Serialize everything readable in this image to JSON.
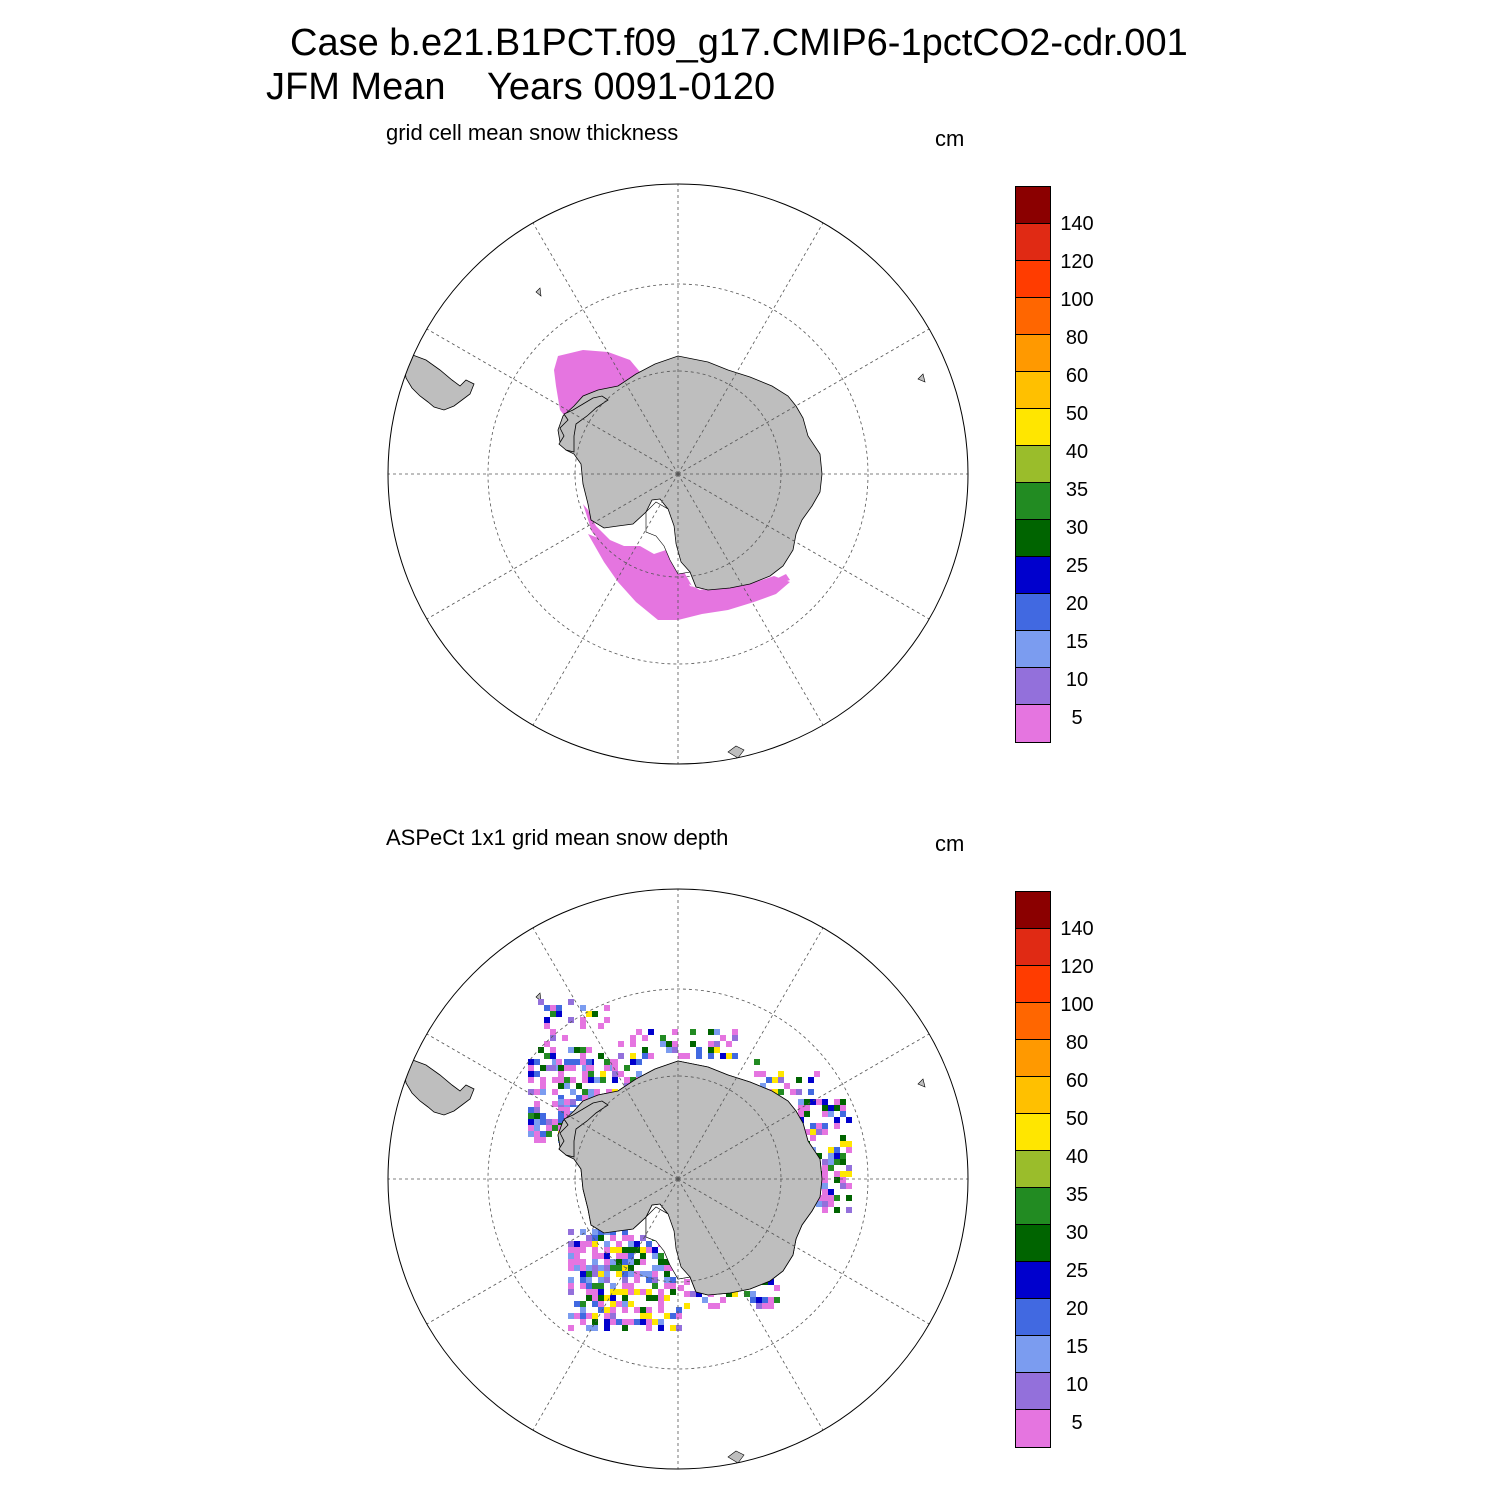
{
  "title": {
    "line1": "Case b.e21.B1PCT.f09_g17.CMIP6-1pctCO2-cdr.001",
    "line2": "JFM Mean    Years 0091-0120"
  },
  "panels": [
    {
      "title": "grid cell mean snow thickness",
      "units": "cm"
    },
    {
      "title": "ASPeCt 1x1 grid mean snow depth",
      "units": "cm"
    }
  ],
  "colorbar": {
    "labels": [
      "140",
      "120",
      "100",
      "80",
      "60",
      "50",
      "40",
      "35",
      "30",
      "25",
      "20",
      "15",
      "10",
      "5"
    ],
    "colors": [
      "#8b0000",
      "#e02a14",
      "#ff3c00",
      "#ff6600",
      "#ff9900",
      "#ffc000",
      "#ffe600",
      "#9abd2b",
      "#228b22",
      "#006400",
      "#0000cd",
      "#4169e1",
      "#7b9cf0",
      "#9370db",
      "#e575e0"
    ]
  },
  "map_colors": {
    "land": "#bebebe",
    "grid": "#555555"
  }
}
